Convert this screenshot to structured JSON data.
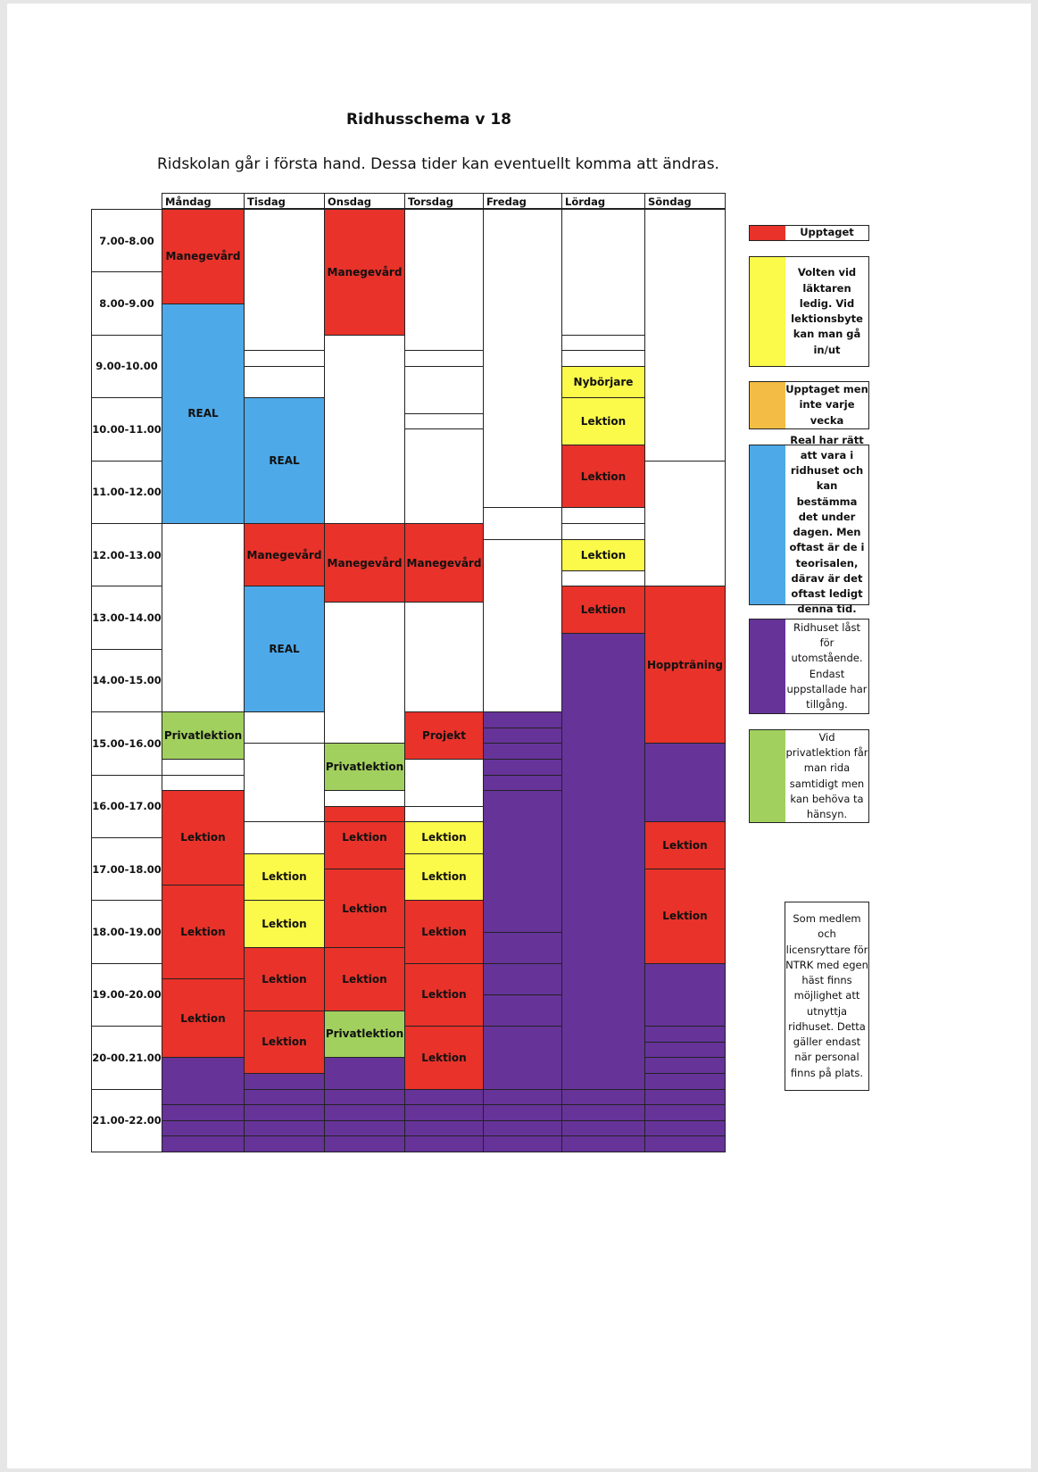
{
  "header": {
    "title": "Ridhusschema v 18",
    "subtitle": "Ridskolan går i första hand. Dessa tider kan eventuellt komma att ändras."
  },
  "colors": {
    "red": "#e8322a",
    "blue": "#4ea9e8",
    "yellow": "#fbf94a",
    "orange": "#f3bd45",
    "purple": "#663399",
    "green": "#a2d05e",
    "white": "#ffffff"
  },
  "days": [
    "Måndag",
    "Tisdag",
    "Onsdag",
    "Torsdag",
    "Fredag",
    "Lördag",
    "Söndag"
  ],
  "times": [
    "7.00-8.00",
    "8.00-9.00",
    "9.00-10.00",
    "10.00-11.00",
    "11.00-12.00",
    "12.00-13.00",
    "13.00-14.00",
    "14.00-15.00",
    "15.00-16.00",
    "16.00-17.00",
    "17.00-18.00",
    "18.00-19.00",
    "19.00-20.00",
    "20-00.21.00",
    "21.00-22.00"
  ],
  "schedule": [
    {
      "day": 0,
      "start": 7.0,
      "end": 8.5,
      "color": "red",
      "label": "Manegevård"
    },
    {
      "day": 0,
      "start": 8.5,
      "end": 12.0,
      "color": "blue",
      "label": "REAL"
    },
    {
      "day": 0,
      "start": 15.0,
      "end": 15.75,
      "color": "green",
      "label": "Privatlektion"
    },
    {
      "day": 0,
      "start": 16.25,
      "end": 17.75,
      "color": "red",
      "label": "Lektion"
    },
    {
      "day": 0,
      "start": 17.75,
      "end": 19.25,
      "color": "red",
      "label": "Lektion"
    },
    {
      "day": 0,
      "start": 19.25,
      "end": 20.5,
      "color": "red",
      "label": "Lektion"
    },
    {
      "day": 0,
      "start": 20.5,
      "end": 22.0,
      "color": "purple",
      "label": ""
    },
    {
      "day": 1,
      "start": 10.0,
      "end": 12.0,
      "color": "blue",
      "label": "REAL"
    },
    {
      "day": 1,
      "start": 12.0,
      "end": 13.0,
      "color": "red",
      "label": "Manegevård"
    },
    {
      "day": 1,
      "start": 13.0,
      "end": 15.0,
      "color": "blue",
      "label": "REAL"
    },
    {
      "day": 1,
      "start": 17.25,
      "end": 18.0,
      "color": "yellow",
      "label": "Lektion"
    },
    {
      "day": 1,
      "start": 18.0,
      "end": 18.75,
      "color": "yellow",
      "label": "Lektion"
    },
    {
      "day": 1,
      "start": 18.75,
      "end": 19.75,
      "color": "red",
      "label": "Lektion"
    },
    {
      "day": 1,
      "start": 19.75,
      "end": 20.75,
      "color": "red",
      "label": "Lektion"
    },
    {
      "day": 1,
      "start": 20.75,
      "end": 22.0,
      "color": "purple",
      "label": ""
    },
    {
      "day": 2,
      "start": 7.0,
      "end": 9.0,
      "color": "red",
      "label": "Manegevård"
    },
    {
      "day": 2,
      "start": 12.0,
      "end": 13.25,
      "color": "red",
      "label": "Manegevård"
    },
    {
      "day": 2,
      "start": 15.5,
      "end": 16.25,
      "color": "green",
      "label": "Privatlektion"
    },
    {
      "day": 2,
      "start": 16.5,
      "end": 17.5,
      "color": "red",
      "label": "Lektion"
    },
    {
      "day": 2,
      "start": 17.5,
      "end": 18.75,
      "color": "red",
      "label": "Lektion"
    },
    {
      "day": 2,
      "start": 18.75,
      "end": 19.75,
      "color": "red",
      "label": "Lektion"
    },
    {
      "day": 2,
      "start": 19.75,
      "end": 20.5,
      "color": "green",
      "label": "Privatlektion"
    },
    {
      "day": 2,
      "start": 20.5,
      "end": 22.0,
      "color": "purple",
      "label": ""
    },
    {
      "day": 3,
      "start": 12.0,
      "end": 13.25,
      "color": "red",
      "label": "Manegevård"
    },
    {
      "day": 3,
      "start": 15.0,
      "end": 15.75,
      "color": "red",
      "label": "Projekt"
    },
    {
      "day": 3,
      "start": 16.75,
      "end": 17.25,
      "color": "yellow",
      "label": "Lektion"
    },
    {
      "day": 3,
      "start": 17.25,
      "end": 18.0,
      "color": "yellow",
      "label": "Lektion"
    },
    {
      "day": 3,
      "start": 18.0,
      "end": 19.0,
      "color": "red",
      "label": "Lektion"
    },
    {
      "day": 3,
      "start": 19.0,
      "end": 20.0,
      "color": "red",
      "label": "Lektion"
    },
    {
      "day": 3,
      "start": 20.0,
      "end": 21.0,
      "color": "red",
      "label": "Lektion"
    },
    {
      "day": 3,
      "start": 21.0,
      "end": 22.0,
      "color": "purple",
      "label": ""
    },
    {
      "day": 4,
      "start": 15.0,
      "end": 22.0,
      "color": "purple",
      "label": ""
    },
    {
      "day": 5,
      "start": 9.5,
      "end": 10.0,
      "color": "yellow",
      "label": "Nybörjare"
    },
    {
      "day": 5,
      "start": 10.0,
      "end": 10.75,
      "color": "yellow",
      "label": "Lektion"
    },
    {
      "day": 5,
      "start": 10.75,
      "end": 11.75,
      "color": "red",
      "label": "Lektion"
    },
    {
      "day": 5,
      "start": 12.25,
      "end": 12.75,
      "color": "yellow",
      "label": "Lektion"
    },
    {
      "day": 5,
      "start": 13.0,
      "end": 13.75,
      "color": "red",
      "label": "Lektion"
    },
    {
      "day": 5,
      "start": 13.75,
      "end": 22.0,
      "color": "purple",
      "label": ""
    },
    {
      "day": 6,
      "start": 13.0,
      "end": 15.5,
      "color": "red",
      "label": "Hoppträning"
    },
    {
      "day": 6,
      "start": 15.5,
      "end": 16.75,
      "color": "purple",
      "label": ""
    },
    {
      "day": 6,
      "start": 16.75,
      "end": 17.5,
      "color": "red",
      "label": "Lektion"
    },
    {
      "day": 6,
      "start": 17.5,
      "end": 19.0,
      "color": "red",
      "label": "Lektion"
    },
    {
      "day": 6,
      "start": 19.0,
      "end": 22.0,
      "color": "purple",
      "label": ""
    }
  ],
  "legend": [
    {
      "color": "red",
      "text": "Upptaget"
    },
    {
      "color": "yellow",
      "text": "Volten vid läktaren ledig. Vid lektionsbyte kan man gå in/ut"
    },
    {
      "color": "orange",
      "text": "Upptaget men inte varje vecka"
    },
    {
      "color": "blue",
      "text": "Real har rätt att vara i ridhuset och kan bestämma det under dagen. Men oftast är de i teorisalen, därav är det oftast ledigt denna tid."
    },
    {
      "color": "purple",
      "text": "Ridhuset låst för utomstående. Endast uppstallade har tillgång."
    },
    {
      "color": "green",
      "text": "Vid privatlektion får man rida samtidigt men kan behöva ta hänsyn."
    }
  ],
  "note": "Som medlem och licensryttare för NTRK med egen häst finns möjlighet att utnyttja ridhuset. Detta gäller endast när personal finns på plats."
}
